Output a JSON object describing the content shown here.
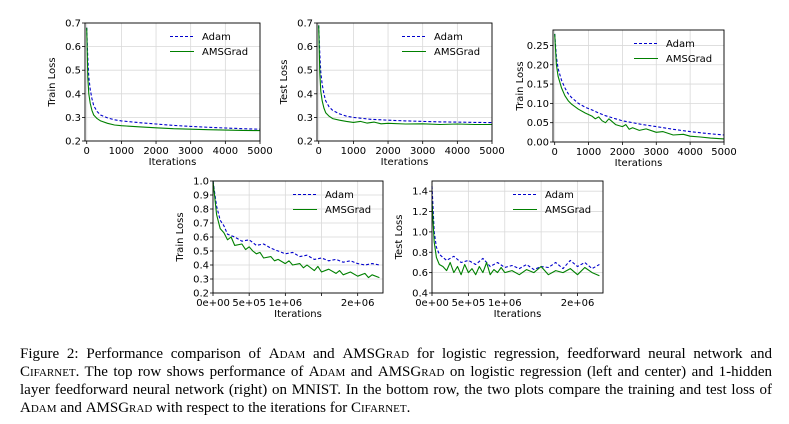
{
  "chart_data": [
    {
      "type": "line",
      "xlabel": "Iterations",
      "ylabel": "Train Loss",
      "xlim": [
        -50,
        5000
      ],
      "ylim": [
        0.2,
        0.7
      ],
      "xticks": [
        0,
        1000,
        2000,
        3000,
        4000,
        5000
      ],
      "xtick_labels": [
        "0",
        "1000",
        "2000",
        "3000",
        "4000",
        "5000"
      ],
      "yticks": [
        0.2,
        0.3,
        0.4,
        0.5,
        0.6,
        0.7
      ],
      "ytick_labels": [
        "0.2",
        "0.3",
        "0.4",
        "0.5",
        "0.6",
        "0.7"
      ],
      "grid": true,
      "legend": "top-right",
      "series": [
        {
          "name": "Adam",
          "color": "#0000cc",
          "style": "dashed",
          "x": [
            0,
            30,
            60,
            100,
            150,
            200,
            300,
            400,
            600,
            800,
            1000,
            1500,
            2000,
            2500,
            3000,
            3500,
            4000,
            4500,
            5000
          ],
          "y": [
            0.68,
            0.55,
            0.47,
            0.42,
            0.38,
            0.35,
            0.325,
            0.31,
            0.298,
            0.29,
            0.285,
            0.278,
            0.272,
            0.266,
            0.262,
            0.258,
            0.255,
            0.252,
            0.25
          ]
        },
        {
          "name": "AMSGrad",
          "color": "#008000",
          "style": "solid",
          "x": [
            0,
            30,
            60,
            100,
            150,
            200,
            300,
            400,
            600,
            800,
            1000,
            1500,
            2000,
            2500,
            3000,
            3500,
            4000,
            4500,
            5000
          ],
          "y": [
            0.68,
            0.47,
            0.4,
            0.36,
            0.33,
            0.31,
            0.295,
            0.285,
            0.275,
            0.268,
            0.265,
            0.26,
            0.256,
            0.252,
            0.25,
            0.248,
            0.246,
            0.245,
            0.244
          ]
        }
      ]
    },
    {
      "type": "line",
      "xlabel": "Iterations",
      "ylabel": "Test Loss",
      "xlim": [
        -50,
        5000
      ],
      "ylim": [
        0.2,
        0.7
      ],
      "xticks": [
        0,
        1000,
        2000,
        3000,
        4000,
        5000
      ],
      "xtick_labels": [
        "0",
        "1000",
        "2000",
        "3000",
        "4000",
        "5000"
      ],
      "yticks": [
        0.2,
        0.3,
        0.4,
        0.5,
        0.6,
        0.7
      ],
      "ytick_labels": [
        "0.2",
        "0.3",
        "0.4",
        "0.5",
        "0.6",
        "0.7"
      ],
      "grid": true,
      "legend": "top-right",
      "series": [
        {
          "name": "Adam",
          "color": "#0000cc",
          "style": "dashed",
          "x": [
            0,
            30,
            60,
            100,
            150,
            200,
            300,
            400,
            600,
            800,
            1000,
            1500,
            2000,
            2500,
            3000,
            3500,
            4000,
            4500,
            5000
          ],
          "y": [
            0.69,
            0.57,
            0.49,
            0.44,
            0.4,
            0.37,
            0.345,
            0.33,
            0.315,
            0.305,
            0.3,
            0.292,
            0.288,
            0.285,
            0.283,
            0.281,
            0.28,
            0.279,
            0.278
          ]
        },
        {
          "name": "AMSGrad",
          "color": "#008000",
          "style": "solid",
          "x": [
            0,
            30,
            60,
            100,
            150,
            200,
            300,
            400,
            600,
            800,
            1000,
            1200,
            1400,
            1600,
            1800,
            2000,
            2500,
            3000,
            3500,
            4000,
            4500,
            5000
          ],
          "y": [
            0.69,
            0.49,
            0.41,
            0.37,
            0.34,
            0.32,
            0.305,
            0.295,
            0.288,
            0.283,
            0.279,
            0.283,
            0.276,
            0.28,
            0.273,
            0.275,
            0.272,
            0.273,
            0.27,
            0.272,
            0.27,
            0.27
          ]
        }
      ]
    },
    {
      "type": "line",
      "xlabel": "Iterations",
      "ylabel": "Train Loss",
      "xlim": [
        -50,
        5000
      ],
      "ylim": [
        0.0,
        0.29
      ],
      "xticks": [
        0,
        1000,
        2000,
        3000,
        4000,
        5000
      ],
      "xtick_labels": [
        "0",
        "1000",
        "2000",
        "3000",
        "4000",
        "5000"
      ],
      "yticks": [
        0.0,
        0.05,
        0.1,
        0.15,
        0.2,
        0.25
      ],
      "ytick_labels": [
        "0.00",
        "0.05",
        "0.10",
        "0.15",
        "0.20",
        "0.25"
      ],
      "grid": true,
      "legend": "top-right",
      "series": [
        {
          "name": "Adam",
          "color": "#0000cc",
          "style": "dashed",
          "x": [
            0,
            50,
            100,
            200,
            300,
            400,
            500,
            700,
            900,
            1100,
            1300,
            1500,
            1800,
            2000,
            2300,
            2600,
            3000,
            3500,
            4000,
            4500,
            5000
          ],
          "y": [
            0.28,
            0.22,
            0.19,
            0.16,
            0.14,
            0.125,
            0.115,
            0.1,
            0.09,
            0.083,
            0.075,
            0.068,
            0.06,
            0.055,
            0.05,
            0.045,
            0.04,
            0.033,
            0.027,
            0.022,
            0.018
          ]
        },
        {
          "name": "AMSGrad",
          "color": "#008000",
          "style": "solid",
          "x": [
            0,
            50,
            100,
            200,
            300,
            400,
            500,
            700,
            900,
            1100,
            1200,
            1300,
            1400,
            1500,
            1600,
            1800,
            2000,
            2100,
            2200,
            2300,
            2500,
            2700,
            3000,
            3200,
            3500,
            3800,
            4000,
            4300,
            4600,
            5000
          ],
          "y": [
            0.28,
            0.2,
            0.17,
            0.14,
            0.12,
            0.107,
            0.098,
            0.085,
            0.075,
            0.067,
            0.06,
            0.065,
            0.055,
            0.05,
            0.06,
            0.045,
            0.04,
            0.045,
            0.033,
            0.037,
            0.03,
            0.034,
            0.025,
            0.027,
            0.018,
            0.02,
            0.015,
            0.013,
            0.01,
            0.008
          ]
        }
      ]
    },
    {
      "type": "line",
      "xlabel": "Iterations",
      "ylabel": "Train Loss",
      "xlim": [
        0,
        2350000
      ],
      "ylim": [
        0.2,
        1.0
      ],
      "xticks": [
        0,
        500000,
        1000000,
        1500000,
        2000000
      ],
      "xtick_labels": [
        "0e+00",
        "5e+05",
        "1e+06",
        "",
        "2e+06"
      ],
      "yticks": [
        0.2,
        0.3,
        0.4,
        0.5,
        0.6,
        0.7,
        0.8,
        0.9,
        1.0
      ],
      "ytick_labels": [
        "0.2",
        "0.3",
        "0.4",
        "0.5",
        "0.6",
        "0.7",
        "0.8",
        "0.9",
        "1.0"
      ],
      "grid": true,
      "legend": "top-right",
      "series": [
        {
          "name": "Adam",
          "color": "#0000cc",
          "style": "dashed",
          "x": [
            0,
            50000,
            100000,
            150000,
            200000,
            300000,
            400000,
            500000,
            600000,
            700000,
            800000,
            900000,
            1000000,
            1100000,
            1200000,
            1300000,
            1400000,
            1500000,
            1600000,
            1700000,
            1800000,
            1900000,
            2000000,
            2100000,
            2200000,
            2300000
          ],
          "y": [
            1.0,
            0.82,
            0.72,
            0.68,
            0.62,
            0.6,
            0.57,
            0.58,
            0.54,
            0.55,
            0.52,
            0.5,
            0.48,
            0.49,
            0.46,
            0.47,
            0.44,
            0.45,
            0.43,
            0.44,
            0.42,
            0.43,
            0.41,
            0.4,
            0.41,
            0.4
          ]
        },
        {
          "name": "AMSGrad",
          "color": "#008000",
          "style": "solid",
          "x": [
            0,
            50000,
            100000,
            150000,
            200000,
            250000,
            300000,
            400000,
            450000,
            500000,
            550000,
            600000,
            650000,
            700000,
            800000,
            850000,
            900000,
            1000000,
            1050000,
            1100000,
            1200000,
            1250000,
            1300000,
            1400000,
            1450000,
            1500000,
            1600000,
            1700000,
            1750000,
            1800000,
            1900000,
            2000000,
            2100000,
            2150000,
            2200000,
            2300000
          ],
          "y": [
            1.0,
            0.76,
            0.66,
            0.63,
            0.58,
            0.6,
            0.54,
            0.55,
            0.51,
            0.53,
            0.5,
            0.48,
            0.49,
            0.45,
            0.46,
            0.43,
            0.44,
            0.41,
            0.43,
            0.4,
            0.41,
            0.38,
            0.4,
            0.36,
            0.39,
            0.35,
            0.37,
            0.34,
            0.36,
            0.33,
            0.35,
            0.32,
            0.34,
            0.31,
            0.33,
            0.31
          ]
        }
      ]
    },
    {
      "type": "line",
      "xlabel": "Iterations",
      "ylabel": "Test Loss",
      "xlim": [
        0,
        2350000
      ],
      "ylim": [
        0.4,
        1.5
      ],
      "xticks": [
        0,
        500000,
        1000000,
        1500000,
        2000000
      ],
      "xtick_labels": [
        "0e+00",
        "5e+05",
        "1e+06",
        "",
        "2e+06"
      ],
      "yticks": [
        0.4,
        0.6,
        0.8,
        1.0,
        1.2,
        1.4
      ],
      "ytick_labels": [
        "0.4",
        "0.6",
        "0.8",
        "1.0",
        "1.2",
        "1.4"
      ],
      "grid": true,
      "legend": "top-right",
      "series": [
        {
          "name": "Adam",
          "color": "#0000cc",
          "style": "dashed",
          "x": [
            0,
            30000,
            60000,
            100000,
            150000,
            200000,
            300000,
            400000,
            500000,
            600000,
            700000,
            800000,
            900000,
            1000000,
            1100000,
            1200000,
            1300000,
            1400000,
            1500000,
            1600000,
            1700000,
            1800000,
            1900000,
            2000000,
            2100000,
            2200000,
            2300000
          ],
          "y": [
            1.45,
            1.0,
            0.85,
            0.78,
            0.75,
            0.72,
            0.76,
            0.7,
            0.72,
            0.68,
            0.74,
            0.66,
            0.7,
            0.65,
            0.67,
            0.64,
            0.68,
            0.63,
            0.66,
            0.65,
            0.7,
            0.64,
            0.72,
            0.66,
            0.7,
            0.64,
            0.68
          ]
        },
        {
          "name": "AMSGrad",
          "color": "#008000",
          "style": "solid",
          "x": [
            0,
            30000,
            60000,
            100000,
            150000,
            200000,
            250000,
            300000,
            350000,
            400000,
            450000,
            500000,
            550000,
            600000,
            650000,
            700000,
            750000,
            800000,
            850000,
            900000,
            950000,
            1000000,
            1100000,
            1200000,
            1300000,
            1400000,
            1500000,
            1600000,
            1700000,
            1800000,
            1900000,
            2000000,
            2100000,
            2200000,
            2300000
          ],
          "y": [
            1.3,
            0.9,
            0.75,
            0.68,
            0.66,
            0.62,
            0.7,
            0.6,
            0.66,
            0.58,
            0.68,
            0.6,
            0.64,
            0.58,
            0.66,
            0.6,
            0.7,
            0.58,
            0.63,
            0.6,
            0.65,
            0.6,
            0.62,
            0.58,
            0.63,
            0.6,
            0.66,
            0.58,
            0.62,
            0.6,
            0.64,
            0.58,
            0.65,
            0.6,
            0.57
          ]
        }
      ]
    }
  ],
  "caption": {
    "label": "Figure 2:",
    "parts": [
      {
        "t": "Performance comparison of "
      },
      {
        "t": "Adam",
        "sc": true
      },
      {
        "t": " and "
      },
      {
        "t": "AMSGrad",
        "sc": true
      },
      {
        "t": " for logistic regression, feedforward neural network and "
      },
      {
        "t": "Cifarnet",
        "sc": true
      },
      {
        "t": ".  The top row shows performance of "
      },
      {
        "t": "Adam",
        "sc": true
      },
      {
        "t": " and "
      },
      {
        "t": "AMSGrad",
        "sc": true
      },
      {
        "t": " on logistic regression (left and center) and 1-hidden layer feedforward neural network (right) on MNIST. In the bottom row, the two plots compare the training and test loss of "
      },
      {
        "t": "Adam",
        "sc": true
      },
      {
        "t": " and "
      },
      {
        "t": "AMSGrad",
        "sc": true
      },
      {
        "t": " with respect to the iterations for "
      },
      {
        "t": "Cifarnet",
        "sc": true
      },
      {
        "t": "."
      }
    ]
  }
}
